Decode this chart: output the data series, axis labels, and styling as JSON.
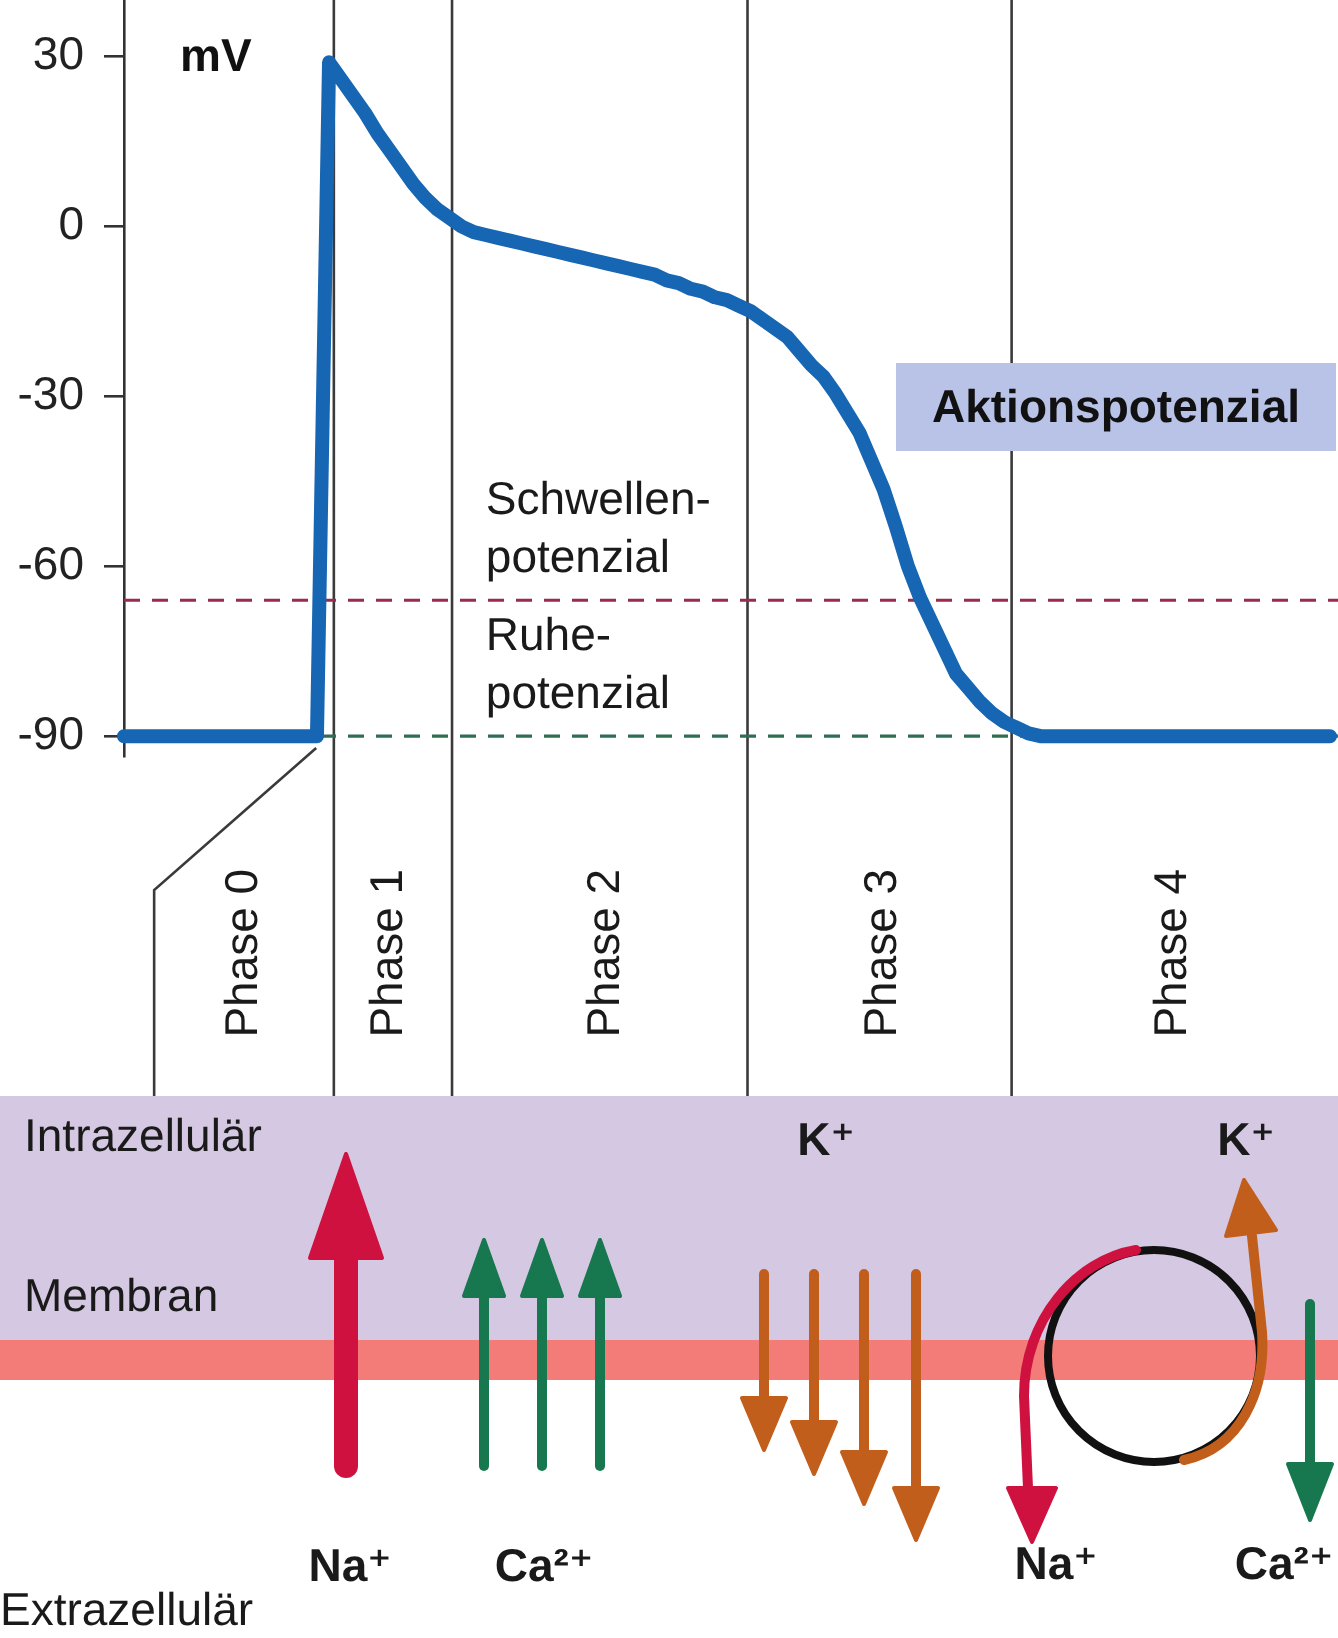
{
  "chart_data": {
    "type": "line",
    "ylabel": "mV",
    "categories": [
      null,
      null,
      null,
      null,
      null,
      null,
      null,
      null,
      null,
      null,
      "Phase 0",
      null,
      null,
      null,
      null,
      null,
      null,
      null,
      null,
      null,
      null,
      null,
      "Phase 1",
      null,
      null,
      null,
      null,
      null,
      null,
      null,
      null,
      null,
      null,
      null,
      null,
      null,
      null,
      null,
      null,
      null,
      "Phase 2",
      null,
      null,
      null,
      null,
      null,
      null,
      null,
      null,
      null,
      null,
      null,
      null,
      null,
      null,
      null,
      null,
      null,
      null,
      null,
      null,
      null,
      null,
      "Phase 3",
      null,
      null,
      null,
      null,
      null,
      null,
      null,
      null,
      null,
      null,
      null,
      null,
      null,
      null,
      null,
      null,
      null,
      null,
      null,
      null,
      null,
      null,
      null,
      "Phase 4",
      null,
      null,
      null,
      null,
      null,
      null,
      null,
      null,
      null,
      null,
      null,
      null,
      null
    ],
    "series": [
      {
        "name": "Aktionspotenzial",
        "color": "#1766b3",
        "values": [
          -90,
          -90,
          -90,
          -90,
          -90,
          -90,
          -90,
          -90,
          -90,
          -90,
          -90,
          -90,
          -90,
          -90,
          -90,
          -90,
          -90,
          29,
          26,
          23,
          20,
          16.5,
          13.5,
          10.5,
          7.5,
          5,
          3,
          1.5,
          0,
          -1,
          -1.5,
          -2,
          -2.5,
          -3,
          -3.5,
          -4,
          -4.5,
          -5,
          -5.5,
          -6,
          -6.5,
          -7,
          -7.5,
          -8,
          -8.5,
          -9.5,
          -10,
          -11,
          -11.5,
          -12.5,
          -13,
          -14,
          -15,
          -16.5,
          -18,
          -19.5,
          -22,
          -24.5,
          -26.5,
          -29.5,
          -33,
          -36.5,
          -41.5,
          -46.5,
          -53,
          -60,
          -65.5,
          -70,
          -74.5,
          -79,
          -81.5,
          -84,
          -86,
          -87.5,
          -88.5,
          -89.5,
          -90,
          -90,
          -90,
          -90,
          -90,
          -90,
          -90,
          -90,
          -90,
          -90,
          -90,
          -90,
          -90,
          -90,
          -90,
          -90,
          -90,
          -90,
          -90,
          -90,
          -90,
          -90,
          -90,
          -90,
          -90
        ]
      }
    ],
    "ylim": [
      -93.5,
      40
    ],
    "yticks": [
      -90,
      -60,
      -30,
      0,
      30
    ],
    "grid": false,
    "legend": false,
    "marker": "none",
    "line_style": "solid",
    "ref_lines": [
      {
        "axis": "y",
        "value": -66,
        "label": "Schwellen-\npotenzial",
        "color": "#9b2b4c",
        "line_style": "dashed"
      },
      {
        "axis": "y",
        "value": -90,
        "label": "Ruhe-\npotenzial",
        "color": "#2f6e52",
        "line_style": "dashed"
      }
    ],
    "annotations": [
      "Intrazellulär",
      "Membran",
      "Extrazellulär",
      "Na⁺",
      "Ca²⁺",
      "K⁺",
      "K⁺",
      "Na⁺",
      "Ca²⁺"
    ]
  }
}
